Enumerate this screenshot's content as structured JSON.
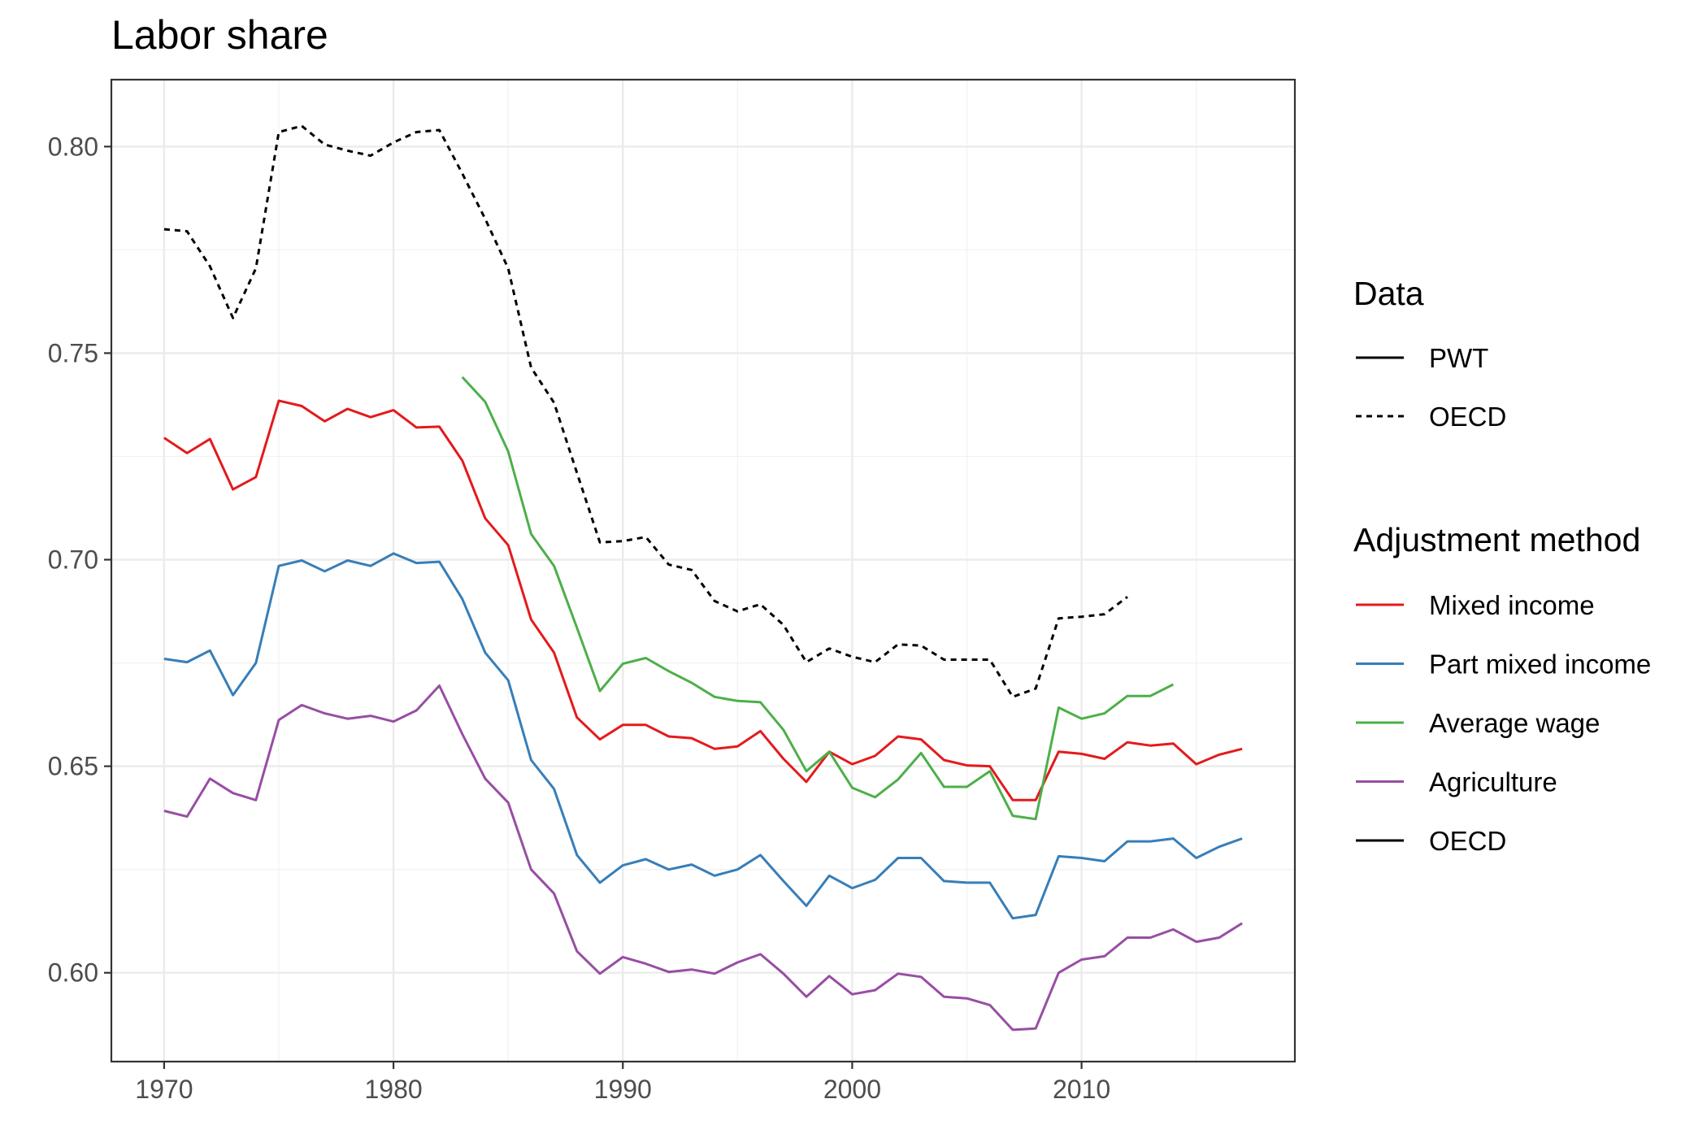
{
  "chart_data": {
    "type": "line",
    "title": "Labor share",
    "xlabel": "",
    "ylabel": "",
    "xlim": [
      1967.7,
      2019.3
    ],
    "ylim": [
      0.5785,
      0.8162
    ],
    "x_ticks": [
      1970,
      1980,
      1990,
      2000,
      2010
    ],
    "x_tick_labels": [
      "1970",
      "1980",
      "1990",
      "2000",
      "2010"
    ],
    "x_minor_ticks": [
      1975,
      1985,
      1995,
      2005,
      2015
    ],
    "y_ticks": [
      0.6,
      0.65,
      0.7,
      0.75,
      0.8
    ],
    "y_tick_labels": [
      "0.60",
      "0.65",
      "0.70",
      "0.75",
      "0.80"
    ],
    "y_minor_ticks": [
      0.625,
      0.675,
      0.725,
      0.775
    ],
    "grid": true,
    "legend_position": "right",
    "legend": {
      "data_title": "Data",
      "data_items": [
        {
          "label": "PWT",
          "dash": "solid"
        },
        {
          "label": "OECD",
          "dash": "dotted"
        }
      ],
      "method_title": "Adjustment method",
      "method_items": [
        {
          "label": "Mixed income",
          "color": "#e41a1c"
        },
        {
          "label": "Part mixed income",
          "color": "#377eb8"
        },
        {
          "label": "Average wage",
          "color": "#4daf4a"
        },
        {
          "label": "Agriculture",
          "color": "#984ea3"
        },
        {
          "label": "OECD",
          "color": "#000000"
        }
      ]
    },
    "series": [
      {
        "name": "Mixed income",
        "data_source": "PWT",
        "color": "#e41a1c",
        "dash": "solid",
        "x": [
          1970,
          1971,
          1972,
          1973,
          1974,
          1975,
          1976,
          1977,
          1978,
          1979,
          1980,
          1981,
          1982,
          1983,
          1984,
          1985,
          1986,
          1987,
          1988,
          1989,
          1990,
          1991,
          1992,
          1993,
          1994,
          1995,
          1996,
          1997,
          1998,
          1999,
          2000,
          2001,
          2002,
          2003,
          2004,
          2005,
          2006,
          2007,
          2008,
          2009,
          2010,
          2011,
          2012,
          2013,
          2014,
          2015,
          2016,
          2017
        ],
        "values": [
          0.7295,
          0.7258,
          0.7292,
          0.717,
          0.72,
          0.7385,
          0.7372,
          0.7335,
          0.7365,
          0.7345,
          0.7362,
          0.732,
          0.7322,
          0.724,
          0.71,
          0.7035,
          0.6855,
          0.6775,
          0.6618,
          0.6565,
          0.66,
          0.66,
          0.6572,
          0.6568,
          0.6542,
          0.6548,
          0.6585,
          0.6518,
          0.6462,
          0.6535,
          0.6505,
          0.6525,
          0.6572,
          0.6565,
          0.6515,
          0.6502,
          0.65,
          0.6418,
          0.6418,
          0.6535,
          0.653,
          0.6518,
          0.6558,
          0.655,
          0.6555,
          0.6505,
          0.6528,
          0.6542
        ]
      },
      {
        "name": "Part mixed income",
        "data_source": "PWT",
        "color": "#377eb8",
        "dash": "solid",
        "x": [
          1970,
          1971,
          1972,
          1973,
          1974,
          1975,
          1976,
          1977,
          1978,
          1979,
          1980,
          1981,
          1982,
          1983,
          1984,
          1985,
          1986,
          1987,
          1988,
          1989,
          1990,
          1991,
          1992,
          1993,
          1994,
          1995,
          1996,
          1997,
          1998,
          1999,
          2000,
          2001,
          2002,
          2003,
          2004,
          2005,
          2006,
          2007,
          2008,
          2009,
          2010,
          2011,
          2012,
          2013,
          2014,
          2015,
          2016,
          2017
        ],
        "values": [
          0.676,
          0.6752,
          0.678,
          0.6672,
          0.675,
          0.6985,
          0.6998,
          0.6972,
          0.6998,
          0.6985,
          0.7015,
          0.6992,
          0.6995,
          0.6905,
          0.6775,
          0.6708,
          0.6515,
          0.6445,
          0.6285,
          0.6218,
          0.626,
          0.6275,
          0.625,
          0.6262,
          0.6235,
          0.625,
          0.6285,
          0.6222,
          0.6162,
          0.6235,
          0.6205,
          0.6225,
          0.6278,
          0.6278,
          0.6222,
          0.6218,
          0.6218,
          0.6132,
          0.614,
          0.6282,
          0.6278,
          0.627,
          0.6318,
          0.6318,
          0.6325,
          0.6278,
          0.6305,
          0.6325
        ]
      },
      {
        "name": "Average wage",
        "data_source": "PWT",
        "color": "#4daf4a",
        "dash": "solid",
        "x": [
          1983,
          1984,
          1985,
          1986,
          1987,
          1988,
          1989,
          1990,
          1991,
          1992,
          1993,
          1994,
          1995,
          1996,
          1997,
          1998,
          1999,
          2000,
          2001,
          2002,
          2003,
          2004,
          2005,
          2006,
          2007,
          2008,
          2009,
          2010,
          2011,
          2012,
          2013,
          2014
        ],
        "values": [
          0.7442,
          0.7382,
          0.7262,
          0.7062,
          0.6985,
          0.6835,
          0.6682,
          0.6748,
          0.6762,
          0.673,
          0.6702,
          0.6668,
          0.6658,
          0.6655,
          0.6588,
          0.6488,
          0.6535,
          0.6448,
          0.6425,
          0.6468,
          0.6532,
          0.645,
          0.645,
          0.6488,
          0.638,
          0.6372,
          0.6642,
          0.6615,
          0.6628,
          0.667,
          0.667,
          0.6698
        ]
      },
      {
        "name": "Agriculture",
        "data_source": "PWT",
        "color": "#984ea3",
        "dash": "solid",
        "x": [
          1970,
          1971,
          1972,
          1973,
          1974,
          1975,
          1976,
          1977,
          1978,
          1979,
          1980,
          1981,
          1982,
          1983,
          1984,
          1985,
          1986,
          1987,
          1988,
          1989,
          1990,
          1991,
          1992,
          1993,
          1994,
          1995,
          1996,
          1997,
          1998,
          1999,
          2000,
          2001,
          2002,
          2003,
          2004,
          2005,
          2006,
          2007,
          2008,
          2009,
          2010,
          2011,
          2012,
          2013,
          2014,
          2015,
          2016,
          2017
        ],
        "values": [
          0.6392,
          0.6378,
          0.647,
          0.6435,
          0.6418,
          0.6612,
          0.6648,
          0.6628,
          0.6615,
          0.6622,
          0.6608,
          0.6635,
          0.6695,
          0.6578,
          0.647,
          0.6412,
          0.625,
          0.6192,
          0.6052,
          0.5998,
          0.6038,
          0.6022,
          0.6002,
          0.6008,
          0.5998,
          0.6025,
          0.6045,
          0.5998,
          0.5942,
          0.5992,
          0.5948,
          0.5958,
          0.5998,
          0.599,
          0.5942,
          0.5938,
          0.5922,
          0.5862,
          0.5865,
          0.6,
          0.6032,
          0.604,
          0.6085,
          0.6085,
          0.6105,
          0.6075,
          0.6085,
          0.612
        ]
      },
      {
        "name": "OECD",
        "data_source": "OECD",
        "color": "#000000",
        "dash": "dotted",
        "x": [
          1970,
          1971,
          1972,
          1973,
          1974,
          1975,
          1976,
          1977,
          1978,
          1979,
          1980,
          1981,
          1982,
          1983,
          1984,
          1985,
          1986,
          1987,
          1988,
          1989,
          1990,
          1991,
          1992,
          1993,
          1994,
          1995,
          1996,
          1997,
          1998,
          1999,
          2000,
          2001,
          2002,
          2003,
          2004,
          2005,
          2006,
          2007,
          2008,
          2009,
          2010,
          2011,
          2012
        ],
        "values": [
          0.78,
          0.7795,
          0.771,
          0.7585,
          0.7705,
          0.8035,
          0.805,
          0.8005,
          0.799,
          0.7978,
          0.801,
          0.8035,
          0.804,
          0.7935,
          0.7825,
          0.7705,
          0.7465,
          0.738,
          0.721,
          0.7042,
          0.7045,
          0.7055,
          0.6988,
          0.6975,
          0.69,
          0.6875,
          0.6892,
          0.6842,
          0.6752,
          0.6785,
          0.6765,
          0.6752,
          0.6795,
          0.6792,
          0.6758,
          0.6758,
          0.6758,
          0.6668,
          0.6688,
          0.6858,
          0.6862,
          0.6868,
          0.691
        ]
      }
    ]
  }
}
